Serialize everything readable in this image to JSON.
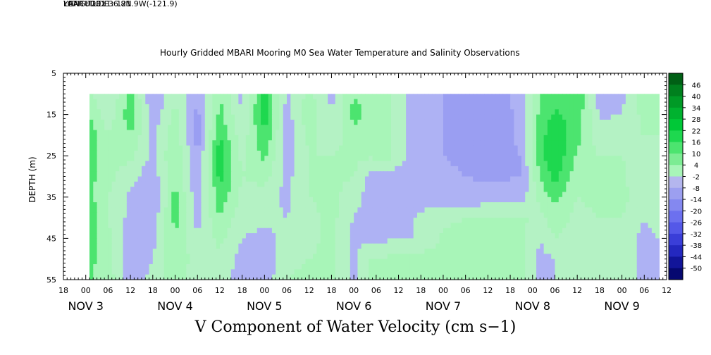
{
  "header": {
    "longitude": "LONGITUDE : 121.9W(-121.9)",
    "latitude": "LATITUDE : 36.8N",
    "year": "YEAR : 2011"
  },
  "title": "Hourly Gridded MBARI Mooring M0 Sea Water Temperature and Salinity Observations",
  "bottom_title": "V Component of Water Velocity (cm s−1)",
  "chart_data": {
    "type": "heatmap",
    "title": "Hourly Gridded MBARI Mooring M0 Sea Water Temperature and Salinity Observations",
    "xlabel": "",
    "ylabel": "DEPTH (m)",
    "variable": "V Component of Water Velocity (cm s−1)",
    "y_range": [
      55,
      5
    ],
    "y_ticks": [
      5,
      15,
      25,
      35,
      45,
      55
    ],
    "x_range_hours": [
      -6,
      156
    ],
    "x_hour_labels": [
      "18",
      "00",
      "06",
      "12",
      "18",
      "00",
      "06",
      "12",
      "18",
      "00",
      "06",
      "12",
      "18",
      "00",
      "06",
      "12",
      "18",
      "00",
      "06",
      "12",
      "18",
      "00",
      "06",
      "12",
      "18",
      "00",
      "06",
      "12"
    ],
    "date_labels": [
      {
        "text": "NOV  3",
        "hour": 0
      },
      {
        "text": "NOV  4",
        "hour": 24
      },
      {
        "text": "NOV  5",
        "hour": 48
      },
      {
        "text": "NOV  6",
        "hour": 72
      },
      {
        "text": "NOV  7",
        "hour": 96
      },
      {
        "text": "NOV  8",
        "hour": 120
      },
      {
        "text": "NOV  9",
        "hour": 144
      }
    ],
    "colorbar": {
      "labels": [
        46,
        40,
        34,
        28,
        22,
        16,
        10,
        4,
        -2,
        -8,
        -14,
        -20,
        -26,
        -32,
        -38,
        -44,
        -50
      ],
      "min": -50,
      "max": 50
    },
    "data_extent": {
      "x_hours": [
        1,
        154
      ],
      "depth": [
        10,
        55
      ]
    },
    "depths": [
      10,
      15,
      20,
      25,
      30,
      35,
      40,
      45,
      50,
      55
    ],
    "times_hours": [
      1,
      6,
      12,
      18,
      24,
      30,
      36,
      42,
      48,
      54,
      60,
      66,
      72,
      76,
      81,
      87,
      96,
      108,
      117,
      122,
      126,
      132,
      138,
      144,
      150,
      154
    ],
    "values": [
      [
        6,
        -3,
        12,
        -8,
        2,
        -6,
        10,
        -4,
        18,
        -3,
        6,
        -4,
        10,
        8,
        6,
        -3,
        -8,
        -11,
        -6,
        10,
        13,
        16,
        -5,
        -4,
        8,
        5
      ],
      [
        10,
        0,
        14,
        -6,
        6,
        -10,
        12,
        -2,
        20,
        -5,
        8,
        -2,
        12,
        8,
        6,
        -3,
        -8,
        -11,
        -7,
        12,
        17,
        14,
        -3,
        -2,
        6,
        5
      ],
      [
        14,
        4,
        10,
        -4,
        8,
        -12,
        16,
        0,
        16,
        -6,
        6,
        0,
        8,
        7,
        6,
        -3,
        -8,
        -11,
        -7,
        14,
        20,
        12,
        0,
        2,
        4,
        4
      ],
      [
        14,
        6,
        6,
        -4,
        10,
        -8,
        20,
        2,
        12,
        -6,
        4,
        4,
        6,
        5,
        6,
        -4,
        -8,
        -10,
        -8,
        14,
        21,
        9,
        4,
        4,
        2,
        3
      ],
      [
        12,
        6,
        0,
        -6,
        10,
        -8,
        18,
        4,
        6,
        -4,
        4,
        6,
        4,
        -4,
        -4,
        -5,
        -7,
        -9,
        -8,
        10,
        18,
        6,
        6,
        5,
        0,
        2
      ],
      [
        12,
        4,
        -4,
        -8,
        12,
        -6,
        14,
        2,
        2,
        -4,
        4,
        6,
        0,
        -4,
        -4,
        -4,
        -6,
        -6,
        -5,
        6,
        12,
        4,
        6,
        6,
        -1,
        2
      ],
      [
        14,
        4,
        -4,
        -6,
        12,
        -4,
        10,
        0,
        0,
        -2,
        2,
        6,
        -2,
        -4,
        -4,
        -3,
        3,
        5,
        5,
        2,
        8,
        2,
        4,
        4,
        -2,
        0
      ],
      [
        14,
        6,
        -6,
        -4,
        10,
        -2,
        6,
        -2,
        -4,
        0,
        2,
        6,
        -4,
        -3,
        -3,
        -3,
        5,
        5,
        6,
        -2,
        4,
        0,
        2,
        2,
        -4,
        -2
      ],
      [
        12,
        6,
        -6,
        -2,
        10,
        0,
        2,
        -4,
        -6,
        2,
        4,
        6,
        -4,
        4,
        5,
        6,
        6,
        6,
        6,
        -4,
        -2,
        -2,
        0,
        2,
        -4,
        -4
      ],
      [
        10,
        8,
        -6,
        0,
        8,
        0,
        0,
        -4,
        -6,
        4,
        6,
        6,
        -4,
        5,
        6,
        6,
        6,
        6,
        6,
        -4,
        -2,
        -2,
        0,
        2,
        -4,
        -4
      ]
    ]
  }
}
